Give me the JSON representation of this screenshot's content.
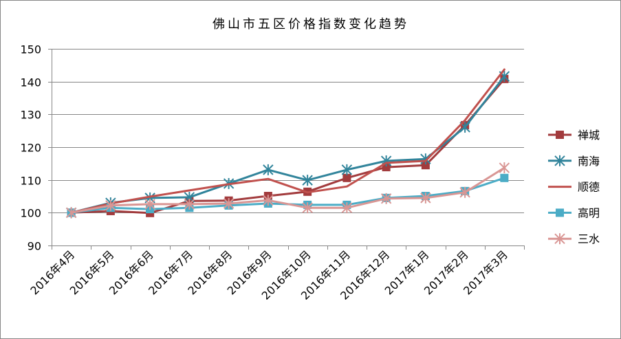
{
  "chart_data": {
    "type": "line",
    "title": "佛山市五区价格指数变化趋势",
    "xlabel": "",
    "ylabel": "",
    "categories": [
      "2016年4月",
      "2016年5月",
      "2016年6月",
      "2016年7月",
      "2016年8月",
      "2016年9月",
      "2016年10月",
      "2016年11月",
      "2016年12月",
      "2017年1月",
      "2017年2月",
      "2017年3月"
    ],
    "ylim": [
      90,
      150
    ],
    "yticks": [
      "90",
      "100",
      "110",
      "120",
      "130",
      "140",
      "150"
    ],
    "grid": true,
    "legend": "right",
    "series": [
      {
        "name": "禅城",
        "color": "#A23B3D",
        "marker": "square",
        "values": [
          100,
          100.5,
          99.9,
          103.6,
          103.7,
          105.1,
          106.4,
          110.6,
          113.9,
          114.5,
          126.7,
          140.8
        ]
      },
      {
        "name": "南海",
        "color": "#31849B",
        "marker": "star",
        "values": [
          100,
          103.0,
          104.5,
          104.7,
          108.9,
          113.1,
          109.9,
          113.1,
          115.8,
          116.4,
          126.1,
          141.6
        ]
      },
      {
        "name": "顺德",
        "color": "#C0504D",
        "marker": "none",
        "values": [
          100,
          102.8,
          104.9,
          106.8,
          108.7,
          110.3,
          106.2,
          108.0,
          115.2,
          115.8,
          128.2,
          143.7
        ]
      },
      {
        "name": "高明",
        "color": "#4BACC6",
        "marker": "square",
        "values": [
          100,
          101.5,
          101.1,
          101.5,
          102.2,
          102.8,
          102.4,
          102.4,
          104.5,
          105.1,
          106.6,
          110.6
        ]
      },
      {
        "name": "三水",
        "color": "#D99694",
        "marker": "star",
        "values": [
          100,
          102.2,
          102.6,
          102.6,
          102.8,
          103.8,
          101.5,
          101.5,
          104.3,
          104.5,
          106.2,
          113.7
        ]
      }
    ]
  }
}
